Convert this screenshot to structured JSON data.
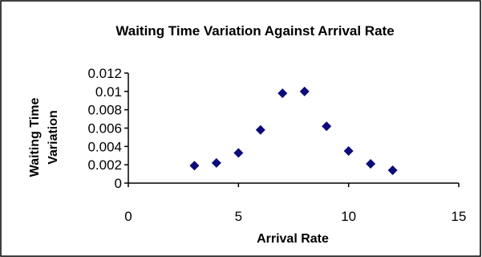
{
  "chart_data": {
    "type": "scatter",
    "title": "Waiting Time Variation Against Arrival Rate",
    "xlabel": "Arrival Rate",
    "ylabel_lines": [
      "Waiting Time",
      "Variation"
    ],
    "xlim": [
      0,
      15
    ],
    "ylim": [
      0,
      0.012
    ],
    "x_ticks": [
      "0",
      "5",
      "10",
      "15"
    ],
    "y_ticks": [
      "0",
      "0.002",
      "0.004",
      "0.006",
      "0.008",
      "0.01",
      "0.012"
    ],
    "grid": false,
    "legend": "none",
    "marker_color": "#0b0b7a",
    "series": [
      {
        "x": [
          3,
          4,
          5,
          6,
          7,
          8,
          9,
          10,
          11,
          12
        ],
        "y": [
          0.0019,
          0.0022,
          0.0033,
          0.0058,
          0.0098,
          0.01,
          0.0062,
          0.0035,
          0.0021,
          0.0014
        ]
      }
    ]
  }
}
